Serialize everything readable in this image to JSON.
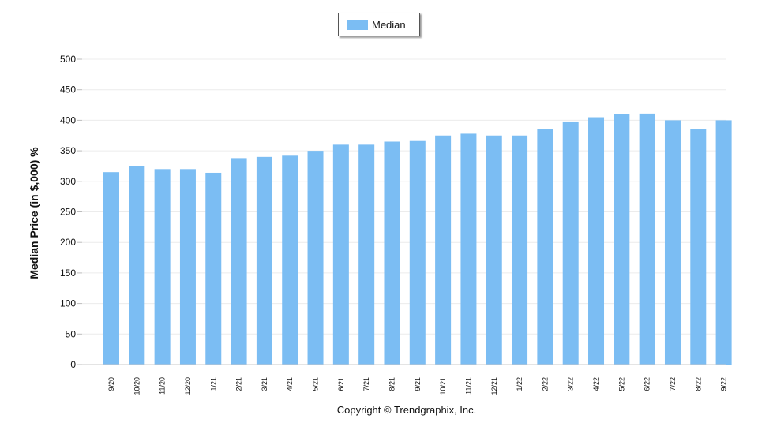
{
  "chart_data": {
    "type": "bar",
    "title": "",
    "xlabel": "",
    "ylabel": "Median Price (in $,000) %",
    "ylim": [
      0,
      500
    ],
    "yticks": [
      0,
      50,
      100,
      150,
      200,
      250,
      300,
      350,
      400,
      450,
      500
    ],
    "grid": true,
    "legend_position": "top-center",
    "categories": [
      "9/20",
      "10/20",
      "11/20",
      "12/20",
      "1/21",
      "2/21",
      "3/21",
      "4/21",
      "5/21",
      "6/21",
      "7/21",
      "8/21",
      "9/21",
      "10/21",
      "11/21",
      "12/21",
      "1/22",
      "2/22",
      "3/22",
      "4/22",
      "5/22",
      "6/22",
      "7/22",
      "8/22",
      "9/22"
    ],
    "series": [
      {
        "name": "Median",
        "color": "#7bbdf3",
        "values": [
          315,
          325,
          320,
          320,
          314,
          338,
          340,
          342,
          350,
          360,
          360,
          365,
          366,
          375,
          378,
          375,
          375,
          385,
          398,
          405,
          410,
          411,
          400,
          385,
          400
        ]
      }
    ]
  },
  "legend": {
    "label": "Median"
  },
  "footer": {
    "copyright": "Copyright © Trendgraphix, Inc."
  }
}
